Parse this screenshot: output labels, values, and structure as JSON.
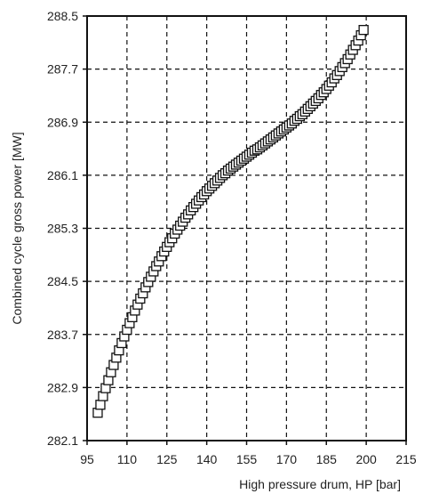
{
  "chart_data": {
    "type": "scatter",
    "title": "",
    "xlabel": "High pressure drum, HP [bar]",
    "ylabel": "Combined cycle gross power [MW]",
    "xlim": [
      95,
      215
    ],
    "ylim": [
      282.1,
      288.5
    ],
    "x_ticks": [
      "95",
      "110",
      "125",
      "140",
      "155",
      "170",
      "185",
      "200",
      "215"
    ],
    "y_ticks": [
      "282.1",
      "282.9",
      "283.7",
      "284.5",
      "285.3",
      "286.1",
      "286.9",
      "287.7",
      "288.5"
    ],
    "grid": true,
    "grid_style": "dashed",
    "legend": "none",
    "marker": "open-square",
    "colors": {
      "marker_stroke": "#111111",
      "grid": "#111111",
      "axes": "#111111"
    },
    "series": [
      {
        "x": [
          99.0,
          100.0,
          101.0,
          102.0,
          103.0,
          104.0,
          105.0,
          106.0,
          107.0,
          108.0,
          109.0,
          110.0,
          111.0,
          112.0,
          113.0,
          114.0,
          115.0,
          116.0,
          117.0,
          118.0,
          119.0,
          120.0,
          121.0,
          122.0,
          123.0,
          124.0,
          125.0,
          126.0,
          127.0,
          128.0,
          129.0,
          130.0,
          131.0,
          132.0,
          133.0,
          134.0,
          135.0,
          136.0,
          137.0,
          138.0,
          139.0,
          140.0,
          141.0,
          142.0,
          143.0,
          144.0,
          145.0,
          146.0,
          147.0,
          148.0,
          149.0,
          150.0,
          151.0,
          152.0,
          153.0,
          154.0,
          155.0,
          156.0,
          157.0,
          158.0,
          159.0,
          160.0,
          161.0,
          162.0,
          163.0,
          164.0,
          165.0,
          166.0,
          167.0,
          168.0,
          169.0,
          170.0,
          171.0,
          172.0,
          173.0,
          174.0,
          175.0,
          176.0,
          177.0,
          178.0,
          179.0,
          180.0,
          181.0,
          182.0,
          183.0,
          184.0,
          185.0,
          186.0,
          187.0,
          188.0,
          189.0,
          190.0,
          191.0,
          192.0,
          193.0,
          194.0,
          195.0,
          196.0,
          197.0,
          198.0,
          199.0
        ],
        "y": [
          282.52,
          282.64,
          282.77,
          282.89,
          283.01,
          283.13,
          283.24,
          283.35,
          283.46,
          283.57,
          283.67,
          283.77,
          283.87,
          283.96,
          284.06,
          284.15,
          284.24,
          284.32,
          284.41,
          284.49,
          284.57,
          284.65,
          284.73,
          284.8,
          284.88,
          284.95,
          285.02,
          285.09,
          285.15,
          285.22,
          285.28,
          285.34,
          285.4,
          285.46,
          285.51,
          285.57,
          285.62,
          285.67,
          285.72,
          285.77,
          285.81,
          285.86,
          285.9,
          285.94,
          285.98,
          286.02,
          286.06,
          286.1,
          286.13,
          286.17,
          286.2,
          286.23,
          286.26,
          286.29,
          286.32,
          286.35,
          286.38,
          286.41,
          286.44,
          286.47,
          286.49,
          286.52,
          286.55,
          286.58,
          286.61,
          286.64,
          286.67,
          286.7,
          286.73,
          286.76,
          286.79,
          286.82,
          286.85,
          286.88,
          286.92,
          286.95,
          286.99,
          287.02,
          287.06,
          287.1,
          287.14,
          287.18,
          287.22,
          287.26,
          287.31,
          287.35,
          287.4,
          287.45,
          287.5,
          287.56,
          287.61,
          287.67,
          287.73,
          287.79,
          287.85,
          287.92,
          287.99,
          288.06,
          288.13,
          288.21,
          288.29
        ]
      }
    ]
  }
}
